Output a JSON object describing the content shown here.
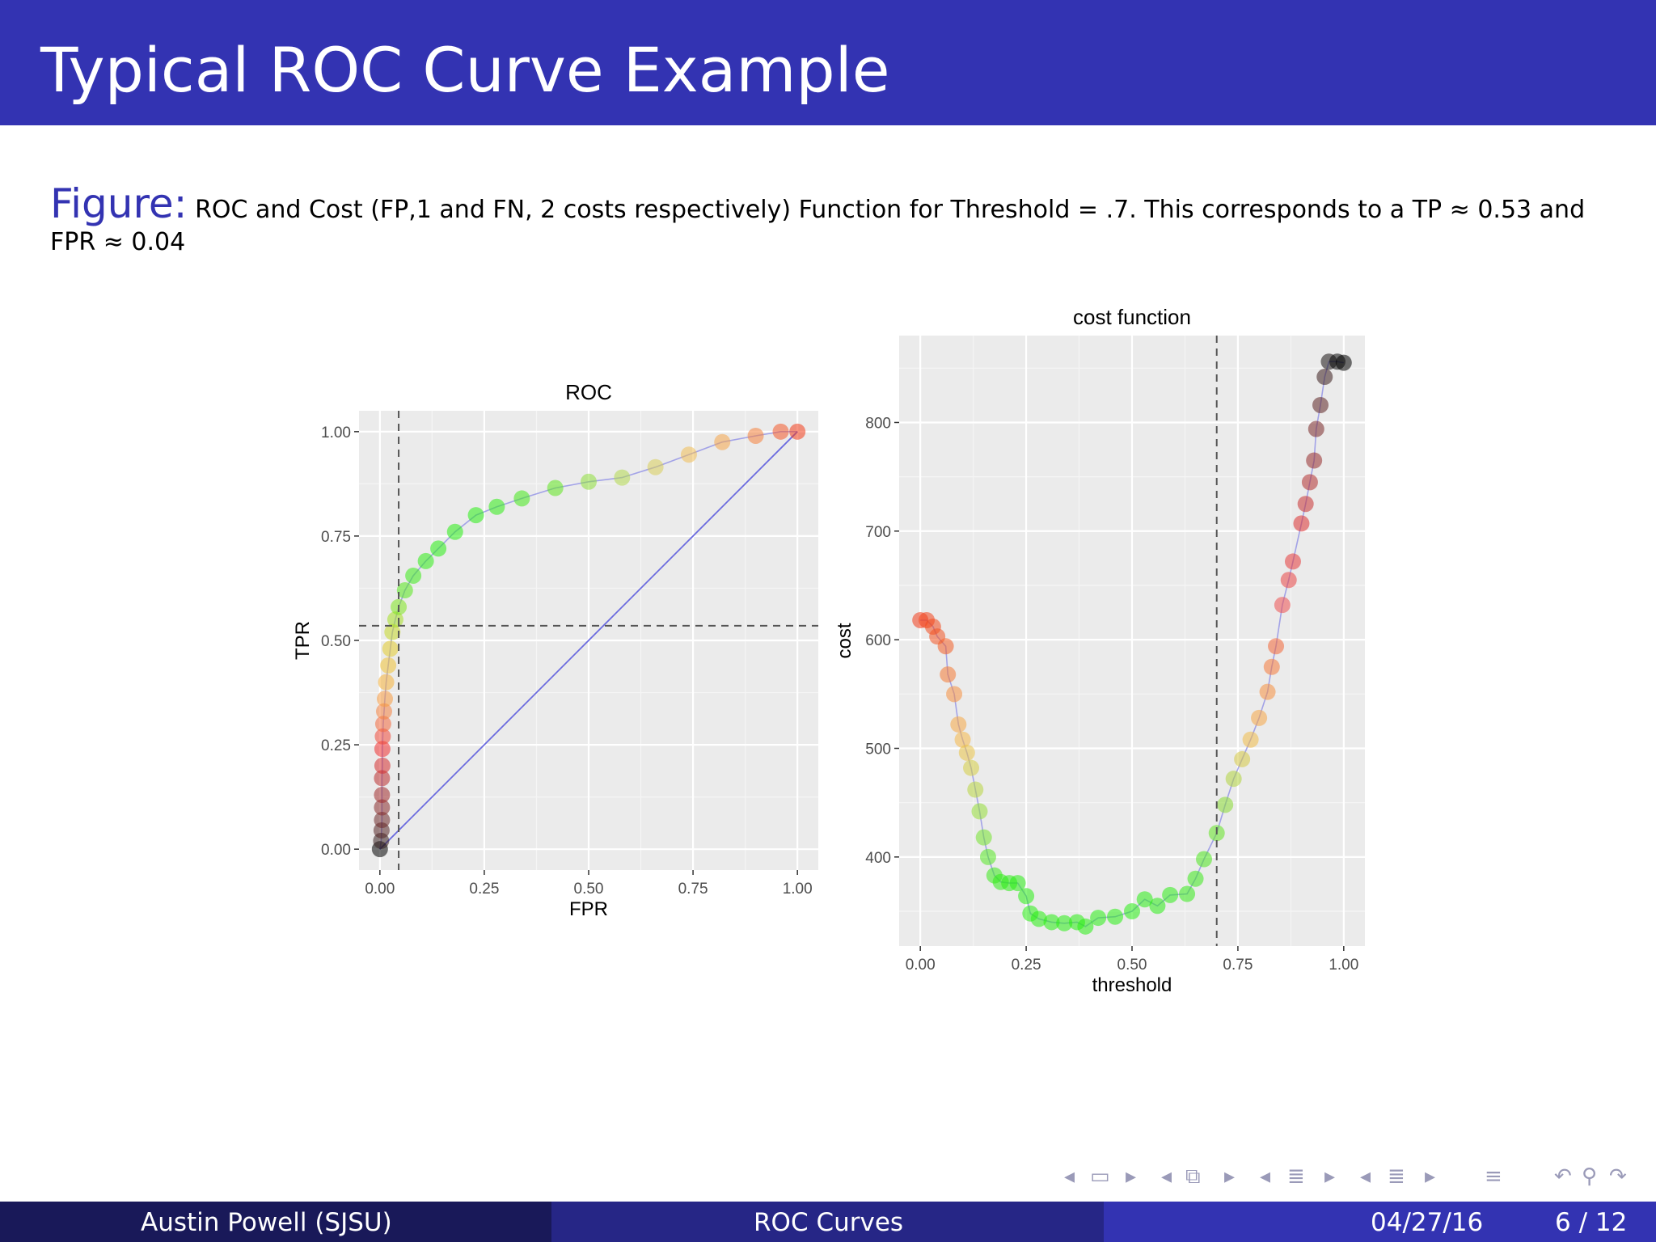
{
  "slide": {
    "title": "Typical ROC Curve Example",
    "caption_label": "Figure:",
    "caption_text": "ROC and Cost (FP,1 and FN, 2 costs respectively) Function for Threshold = .7. This corresponds to a TP ≈ 0.53 and FPR ≈ 0.04"
  },
  "nav_icons": [
    "frame-prev-icon",
    "frame-icon",
    "frame-next-icon",
    "subsection-prev-icon",
    "subsection-icon",
    "subsection-next-icon",
    "section-prev-icon",
    "section-icon",
    "section-next-icon",
    "list-prev-icon",
    "list-icon",
    "list-next-icon",
    "toc-icon",
    "back-icon",
    "search-icon",
    "forward-icon"
  ],
  "footer": {
    "author": "Austin Powell  (SJSU)",
    "short_title": "ROC Curves",
    "date": "04/27/16",
    "page": "6 / 12"
  },
  "colors": {
    "header_bg": "#3333b2",
    "footer_left": "#191959",
    "footer_mid": "#262686",
    "footer_right": "#3333b2",
    "panel_bg": "#ebebeb",
    "reference_line": "#6b6bdf"
  },
  "chart_data": [
    {
      "type": "scatter",
      "title": "ROC",
      "xlabel": "FPR",
      "ylabel": "TPR",
      "xlim": [
        -0.05,
        1.05
      ],
      "ylim": [
        -0.05,
        1.05
      ],
      "xticks": [
        "0.00",
        "0.25",
        "0.50",
        "0.75",
        "1.00"
      ],
      "yticks": [
        "0.00",
        "0.25",
        "0.50",
        "0.75",
        "1.00"
      ],
      "grid": true,
      "color_by": "cost (black → red → orange → green)",
      "vline": 0.045,
      "hline": 0.535,
      "reference_line": [
        [
          0,
          0
        ],
        [
          1,
          1
        ]
      ],
      "points": [
        {
          "x": 0.0,
          "y": 0.0,
          "c": "#000000"
        },
        {
          "x": 0.003,
          "y": 0.02,
          "c": "#3b2222"
        },
        {
          "x": 0.004,
          "y": 0.045,
          "c": "#552727"
        },
        {
          "x": 0.005,
          "y": 0.07,
          "c": "#6e2a2a"
        },
        {
          "x": 0.005,
          "y": 0.1,
          "c": "#882b2b"
        },
        {
          "x": 0.005,
          "y": 0.13,
          "c": "#a12c2c"
        },
        {
          "x": 0.005,
          "y": 0.17,
          "c": "#ba2d2d"
        },
        {
          "x": 0.006,
          "y": 0.2,
          "c": "#d62f2f"
        },
        {
          "x": 0.006,
          "y": 0.24,
          "c": "#ee3030"
        },
        {
          "x": 0.007,
          "y": 0.27,
          "c": "#f04a3a"
        },
        {
          "x": 0.008,
          "y": 0.3,
          "c": "#f26a3e"
        },
        {
          "x": 0.01,
          "y": 0.33,
          "c": "#f4823f"
        },
        {
          "x": 0.012,
          "y": 0.36,
          "c": "#f79a3f"
        },
        {
          "x": 0.015,
          "y": 0.4,
          "c": "#f6b23b"
        },
        {
          "x": 0.02,
          "y": 0.44,
          "c": "#f1c236"
        },
        {
          "x": 0.025,
          "y": 0.48,
          "c": "#e3cc2f"
        },
        {
          "x": 0.03,
          "y": 0.52,
          "c": "#c6d92a"
        },
        {
          "x": 0.037,
          "y": 0.55,
          "c": "#a6e025"
        },
        {
          "x": 0.045,
          "y": 0.58,
          "c": "#7fe51f"
        },
        {
          "x": 0.06,
          "y": 0.62,
          "c": "#55e81a"
        },
        {
          "x": 0.08,
          "y": 0.655,
          "c": "#3aeb16"
        },
        {
          "x": 0.11,
          "y": 0.69,
          "c": "#2ded14"
        },
        {
          "x": 0.14,
          "y": 0.72,
          "c": "#28ee12"
        },
        {
          "x": 0.18,
          "y": 0.76,
          "c": "#28ee12"
        },
        {
          "x": 0.23,
          "y": 0.8,
          "c": "#28ee12"
        },
        {
          "x": 0.28,
          "y": 0.82,
          "c": "#2fed14"
        },
        {
          "x": 0.34,
          "y": 0.84,
          "c": "#44ea18"
        },
        {
          "x": 0.42,
          "y": 0.865,
          "c": "#5fe51d"
        },
        {
          "x": 0.5,
          "y": 0.88,
          "c": "#8ede3a"
        },
        {
          "x": 0.58,
          "y": 0.89,
          "c": "#b2d84f"
        },
        {
          "x": 0.66,
          "y": 0.915,
          "c": "#d8cd5a"
        },
        {
          "x": 0.74,
          "y": 0.945,
          "c": "#f0bd55"
        },
        {
          "x": 0.82,
          "y": 0.975,
          "c": "#f5a64a"
        },
        {
          "x": 0.9,
          "y": 0.99,
          "c": "#f5823d"
        },
        {
          "x": 0.96,
          "y": 1.0,
          "c": "#f45a2a"
        },
        {
          "x": 1.0,
          "y": 1.0,
          "c": "#f23c1a"
        }
      ]
    },
    {
      "type": "scatter",
      "title": "cost function",
      "xlabel": "threshold",
      "ylabel": "cost",
      "xlim": [
        -0.05,
        1.05
      ],
      "ylim": [
        318,
        880
      ],
      "xticks": [
        "0.00",
        "0.25",
        "0.50",
        "0.75",
        "1.00"
      ],
      "yticks": [
        "400",
        "500",
        "600",
        "700",
        "800"
      ],
      "grid": true,
      "color_by": "cost (green → orange → red → black)",
      "vline": 0.7,
      "points": [
        {
          "x": 0.0,
          "y": 618,
          "c": "#f23c1a"
        },
        {
          "x": 0.015,
          "y": 618,
          "c": "#f2441c"
        },
        {
          "x": 0.03,
          "y": 612,
          "c": "#f24a1e"
        },
        {
          "x": 0.04,
          "y": 603,
          "c": "#f25422"
        },
        {
          "x": 0.06,
          "y": 594,
          "c": "#f25e26"
        },
        {
          "x": 0.065,
          "y": 568,
          "c": "#f47a35"
        },
        {
          "x": 0.08,
          "y": 550,
          "c": "#f5903f"
        },
        {
          "x": 0.09,
          "y": 522,
          "c": "#f6a845"
        },
        {
          "x": 0.1,
          "y": 508,
          "c": "#f5b848"
        },
        {
          "x": 0.11,
          "y": 496,
          "c": "#e9c247"
        },
        {
          "x": 0.12,
          "y": 482,
          "c": "#d6cd44"
        },
        {
          "x": 0.13,
          "y": 462,
          "c": "#b8d640"
        },
        {
          "x": 0.14,
          "y": 442,
          "c": "#96de38"
        },
        {
          "x": 0.15,
          "y": 418,
          "c": "#74e42e"
        },
        {
          "x": 0.16,
          "y": 400,
          "c": "#55e824"
        },
        {
          "x": 0.175,
          "y": 383,
          "c": "#3cea1c"
        },
        {
          "x": 0.19,
          "y": 377,
          "c": "#2fec16"
        },
        {
          "x": 0.21,
          "y": 376,
          "c": "#2aed14"
        },
        {
          "x": 0.23,
          "y": 376,
          "c": "#28ee12"
        },
        {
          "x": 0.25,
          "y": 364,
          "c": "#28ee12"
        },
        {
          "x": 0.26,
          "y": 348,
          "c": "#28ee12"
        },
        {
          "x": 0.28,
          "y": 343,
          "c": "#28ee12"
        },
        {
          "x": 0.31,
          "y": 340,
          "c": "#28ee12"
        },
        {
          "x": 0.34,
          "y": 339,
          "c": "#28ee12"
        },
        {
          "x": 0.37,
          "y": 340,
          "c": "#28ee12"
        },
        {
          "x": 0.39,
          "y": 336,
          "c": "#28ee12"
        },
        {
          "x": 0.42,
          "y": 344,
          "c": "#28ee12"
        },
        {
          "x": 0.46,
          "y": 345,
          "c": "#28ee12"
        },
        {
          "x": 0.5,
          "y": 350,
          "c": "#28ee12"
        },
        {
          "x": 0.53,
          "y": 361,
          "c": "#2aed14"
        },
        {
          "x": 0.56,
          "y": 355,
          "c": "#2aed14"
        },
        {
          "x": 0.59,
          "y": 365,
          "c": "#2eec15"
        },
        {
          "x": 0.63,
          "y": 366,
          "c": "#34eb17"
        },
        {
          "x": 0.65,
          "y": 380,
          "c": "#3de91a"
        },
        {
          "x": 0.67,
          "y": 398,
          "c": "#4ce61e"
        },
        {
          "x": 0.7,
          "y": 422,
          "c": "#62e322"
        },
        {
          "x": 0.72,
          "y": 448,
          "c": "#89da33"
        },
        {
          "x": 0.74,
          "y": 472,
          "c": "#b0d33e"
        },
        {
          "x": 0.76,
          "y": 490,
          "c": "#d6c944"
        },
        {
          "x": 0.78,
          "y": 508,
          "c": "#f0bc48"
        },
        {
          "x": 0.8,
          "y": 528,
          "c": "#f5a646"
        },
        {
          "x": 0.82,
          "y": 552,
          "c": "#f59040"
        },
        {
          "x": 0.83,
          "y": 575,
          "c": "#f57a3a"
        },
        {
          "x": 0.84,
          "y": 594,
          "c": "#f26636"
        },
        {
          "x": 0.855,
          "y": 632,
          "c": "#ef5050"
        },
        {
          "x": 0.87,
          "y": 655,
          "c": "#ea4545"
        },
        {
          "x": 0.88,
          "y": 672,
          "c": "#e53a3a"
        },
        {
          "x": 0.9,
          "y": 707,
          "c": "#dc3232"
        },
        {
          "x": 0.91,
          "y": 725,
          "c": "#c83232"
        },
        {
          "x": 0.92,
          "y": 745,
          "c": "#b23030"
        },
        {
          "x": 0.93,
          "y": 765,
          "c": "#962b2b"
        },
        {
          "x": 0.935,
          "y": 794,
          "c": "#7a2828"
        },
        {
          "x": 0.945,
          "y": 816,
          "c": "#5c2424"
        },
        {
          "x": 0.955,
          "y": 842,
          "c": "#3a1e1e"
        },
        {
          "x": 0.965,
          "y": 856,
          "c": "#181212"
        },
        {
          "x": 0.985,
          "y": 856,
          "c": "#080808"
        },
        {
          "x": 1.0,
          "y": 855,
          "c": "#000000"
        }
      ]
    }
  ]
}
